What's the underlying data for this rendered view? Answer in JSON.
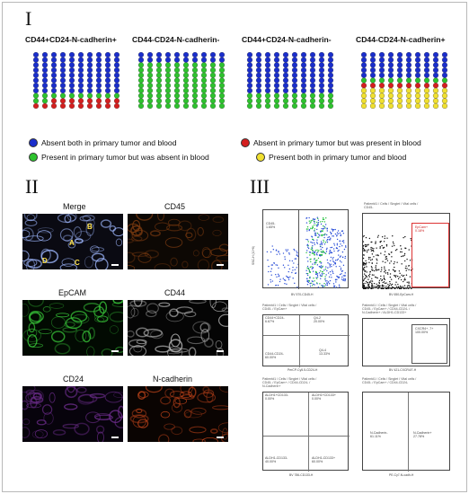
{
  "panel_labels": {
    "one": "I",
    "two": "II",
    "three": "III"
  },
  "colors": {
    "absent_both": "#1a2ecc",
    "absent_primary_present_blood": "#d41f1f",
    "present_primary_absent_blood": "#2ec22e",
    "present_both": "#f0e030"
  },
  "waffles": [
    {
      "title": "CD44+CD24-N-cadherin+",
      "rows": [
        "BBBBBBBBBB",
        "BBBBBBBBBB",
        "BBBBBBBBBB",
        "BBBBBBBBBB",
        "BBBBBBBBBB",
        "BBBBBBBBBB",
        "BBBBBBBBBB",
        "BBBBBBBBBB",
        "GGGGGGGGGG",
        "GGRRRRRRRR",
        "RRRRRRRRRR"
      ]
    },
    {
      "title": "CD44-CD24-N-cadherin-",
      "rows": [
        "BBBBBBBBBB",
        "BBBBBBBBBB",
        "GGGGGGGGGG",
        "GGGGGGGGGG",
        "GGGGGGGGGG",
        "GGGGGGGGGG",
        "GGGGGGGGGG",
        "GGGGGGGGGG",
        "GGGGGGGGGG",
        "GGGGGGGGGG",
        "GGGGGGGGGG"
      ]
    },
    {
      "title": "CD44+CD24-N-cadherin-",
      "rows": [
        "BBBBBBBBBB",
        "BBBBBBBBBB",
        "BBBBBBBBBB",
        "BBBBBBBBBB",
        "BBBBBBBBBB",
        "BBBBBBBBBB",
        "BBBBBBBBBB",
        "BBBBBBBBBB",
        "GGGGGGGGGG",
        "GGGGGGGGGG",
        "GGGGGGGGGG"
      ]
    },
    {
      "title": "CD44-CD24-N-cadherin+",
      "rows": [
        "BBBBBBBBBB",
        "BBBBBBBBBB",
        "BBBBBBBBBB",
        "BBBBBBBBBB",
        "BBBBBBBBBB",
        "GGGGGGGGGG",
        "RRRRRRRRRR",
        "YYYYYYYYYY",
        "YYYYYYYYYY",
        "YYYYYYYYYY",
        "YYYYYYYYYY"
      ]
    }
  ],
  "legend": {
    "absent_both": "Absent both in primary tumor and blood",
    "absent_primary_present_blood": "Absent in primary tumor but was present in blood",
    "present_primary_absent_blood": "Present in primary tumor but was absent in blood",
    "present_both": "Present both in primary tumor and blood"
  },
  "micrographs": [
    {
      "label": "Merge",
      "base": "#0a0a12",
      "stain": "#9fb8ff"
    },
    {
      "label": "CD45",
      "base": "#0d0804",
      "stain": "#7a3a10"
    },
    {
      "label": "EpCAM",
      "base": "#020a02",
      "stain": "#39c83a"
    },
    {
      "label": "CD44",
      "base": "#050505",
      "stain": "#b8b8b8"
    },
    {
      "label": "CD24",
      "base": "#07030c",
      "stain": "#6b2c8a"
    },
    {
      "label": "N-cadherin",
      "base": "#0a0402",
      "stain": "#c2441a"
    }
  ],
  "merge_markers": {
    "b": "B",
    "a": "A",
    "c": "C",
    "d": "D"
  },
  "flow": {
    "p1": {
      "title": "",
      "gate": "CD45-\n1.65%",
      "xlabel": "BV 570-CD45-H",
      "ylabel": "SSC-H (10^6)"
    },
    "p2": {
      "title": "Patient#1 / Cells / Singlet / Vital cells /\nCD45-",
      "gate": "EpCam+\n0.18%",
      "xlabel": "BV 650-EpCam-H",
      "ylabel": "SSC-H (10^6)"
    },
    "p3": {
      "title": "Patient#1 / Cells / Singlet / Vital cells /\nCD45- / EpCam+",
      "q1": "CD44+CD24-\n6.67%",
      "q2": "Q4-2\n20.00%",
      "q3": "CD44-CD24-\n60.00%",
      "q4": "Q4-4\n13.33%",
      "xlabel": "PerCP-Cy5.5-CD24-H",
      "ylabel": "BV 570-CD44-H"
    },
    "p4": {
      "title": "Patient#1 / Cells / Singlet / Vital cells /\nCD45- / EpCam+ / CD44-CD24- /\nN-Cadherin+ / ALDH1-CD133+",
      "gate": "CXCR4+ ,7+\n100.00%",
      "xlabel": "BV 421-CXCR4/7-H",
      "ylabel": "SSC-H (10^6)"
    },
    "p5": {
      "title": "Patient#1 / Cells / Singlet / Vital cells /\nCD45- / EpCam+ / CD44-CD24- /\nN-Cadherin+",
      "q1": "ALDH1+CD133-\n0.00%",
      "q2": "ALDH1+CD133+\n0.00%",
      "q3": "ALDH1-CD133-\n40.00%",
      "q4": "ALDH1-CD133+\n60.00%",
      "xlabel": "BV 786-CD133-H",
      "ylabel": "PE-ALDH1-H"
    },
    "p6": {
      "title": "Patient#1 / Cells / Singlet / Vital cells /\nCD45- / EpCam+ / CD44-CD24-",
      "left": "N-Cadherin-\n61.11%",
      "right": "N-Cadherin+\n27.78%",
      "xlabel": "PE-Cy7-N-cadh-H",
      "ylabel": "SSC-H (10^6)"
    },
    "xticks": [
      "10^1",
      "10^2",
      "10^3",
      "10^4",
      "10^5",
      "10^6"
    ]
  }
}
